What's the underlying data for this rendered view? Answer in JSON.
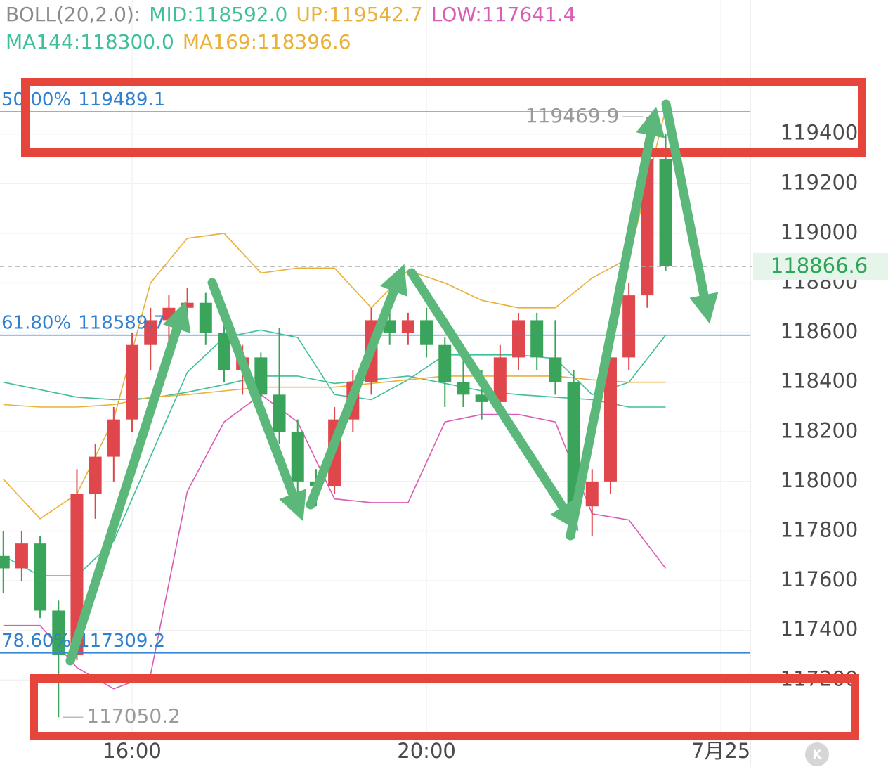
{
  "chart_data": {
    "type": "candlestick",
    "indicator_title": "BOLL(20,2.0):",
    "xlim": [
      14.205,
      24.4
    ],
    "xticks": [
      {
        "value": 16,
        "label": "16:00"
      },
      {
        "value": 20,
        "label": "20:00"
      },
      {
        "value": 24,
        "label": "7月25"
      }
    ],
    "ylim": [
      116980,
      119940
    ],
    "yticks": [
      117200,
      117400,
      117600,
      117800,
      118000,
      118200,
      118400,
      118600,
      118800,
      119000,
      119200,
      119400
    ],
    "grid": true,
    "up_color": "#e0474c",
    "down_color": "#3aa55a",
    "x": [
      14.25,
      14.5,
      14.75,
      15.0,
      15.25,
      15.5,
      15.75,
      16.0,
      16.25,
      16.5,
      16.75,
      17.0,
      17.25,
      17.5,
      17.75,
      18.0,
      18.25,
      18.5,
      18.75,
      19.0,
      19.25,
      19.5,
      19.75,
      20.0,
      20.25,
      20.5,
      20.75,
      21.0,
      21.25,
      21.5,
      21.75,
      22.0,
      22.25,
      22.5,
      22.75,
      23.0,
      23.25
    ],
    "open": [
      117700,
      117650,
      117750,
      117480,
      117300,
      117950,
      118100,
      118250,
      118550,
      118650,
      118700,
      118720,
      118600,
      118450,
      118500,
      118350,
      118200,
      118000,
      117980,
      118250,
      118400,
      118650,
      118600,
      118650,
      118550,
      118400,
      118350,
      118320,
      118500,
      118650,
      118500,
      118400,
      117900,
      118000,
      118500,
      118750,
      119300
    ],
    "high": [
      117800,
      117800,
      117780,
      117520,
      118050,
      118150,
      118300,
      118600,
      118700,
      118750,
      118780,
      118760,
      118650,
      118550,
      118520,
      118620,
      118250,
      118050,
      118300,
      118450,
      118700,
      118700,
      118680,
      118700,
      118580,
      118500,
      118450,
      118550,
      118680,
      118680,
      118650,
      118450,
      118050,
      118550,
      118800,
      119469.9,
      119400
    ],
    "low": [
      117550,
      117600,
      117450,
      117050.2,
      117280,
      117850,
      118000,
      118200,
      118450,
      118550,
      118620,
      118550,
      118400,
      118350,
      118300,
      118150,
      117950,
      117900,
      117950,
      118200,
      118350,
      118550,
      118550,
      118500,
      118300,
      118300,
      118250,
      118300,
      118450,
      118450,
      118350,
      117800,
      117780,
      117950,
      118450,
      118700,
      118850
    ],
    "close": [
      117650,
      117750,
      117480,
      117300,
      117950,
      118100,
      118250,
      118550,
      118650,
      118700,
      118720,
      118600,
      118450,
      118500,
      118350,
      118200,
      118000,
      117980,
      118250,
      118400,
      118650,
      118600,
      118650,
      118550,
      118400,
      118350,
      118320,
      118500,
      118650,
      118500,
      118400,
      117900,
      118000,
      118500,
      118750,
      119300,
      118866.6
    ],
    "line_x": [
      14.25,
      14.75,
      15.25,
      15.75,
      16.25,
      16.75,
      17.25,
      17.75,
      18.25,
      18.75,
      19.25,
      19.75,
      20.25,
      20.75,
      21.25,
      21.75,
      22.25,
      22.75,
      23.25
    ],
    "lines": [
      {
        "legend_label": "MID:",
        "legend_value": "118592.0",
        "color": "#3fbf9a",
        "row": 1,
        "values": [
          117700,
          117620,
          117620,
          117760,
          118100,
          118440,
          118580,
          118610,
          118580,
          118350,
          118330,
          118410,
          118510,
          118510,
          118510,
          118495,
          118350,
          118400,
          118590
        ]
      },
      {
        "legend_label": "UP:",
        "legend_value": "119542.7",
        "color": "#eab13a",
        "row": 1,
        "values": [
          118010,
          117850,
          117950,
          118250,
          118800,
          118980,
          119000,
          118840,
          118860,
          118860,
          118700,
          118850,
          118800,
          118730,
          118700,
          118700,
          118820,
          118900,
          119500
        ]
      },
      {
        "legend_label": "LOW:",
        "legend_value": "117641.4",
        "color": "#d95cb5",
        "row": 1,
        "values": [
          117420,
          117420,
          117250,
          117165,
          117220,
          117960,
          118240,
          118350,
          118240,
          117930,
          117915,
          117915,
          118240,
          118270,
          118270,
          118240,
          117870,
          117845,
          117650
        ]
      },
      {
        "legend_label": "MA144:",
        "legend_value": "118300.0",
        "color": "#3fbf9a",
        "row": 2,
        "values": [
          118400,
          118370,
          118340,
          118330,
          118335,
          118360,
          118390,
          118425,
          118425,
          118395,
          118410,
          118425,
          118395,
          118365,
          118350,
          118340,
          118330,
          118300,
          118300
        ]
      },
      {
        "legend_label": "MA169:",
        "legend_value": "118396.6",
        "color": "#eab13a",
        "row": 2,
        "values": [
          118310,
          118300,
          118300,
          118310,
          118340,
          118350,
          118365,
          118380,
          118380,
          118380,
          118395,
          118410,
          118425,
          118425,
          118425,
          118425,
          118410,
          118400,
          118400
        ]
      }
    ],
    "fib_levels": [
      {
        "label": "50.00%",
        "value": 119489.1
      },
      {
        "label": "61.80%",
        "value": 118589.7
      },
      {
        "label": "78.60%",
        "value": 117309.2
      }
    ],
    "watermark": "K"
  }
}
